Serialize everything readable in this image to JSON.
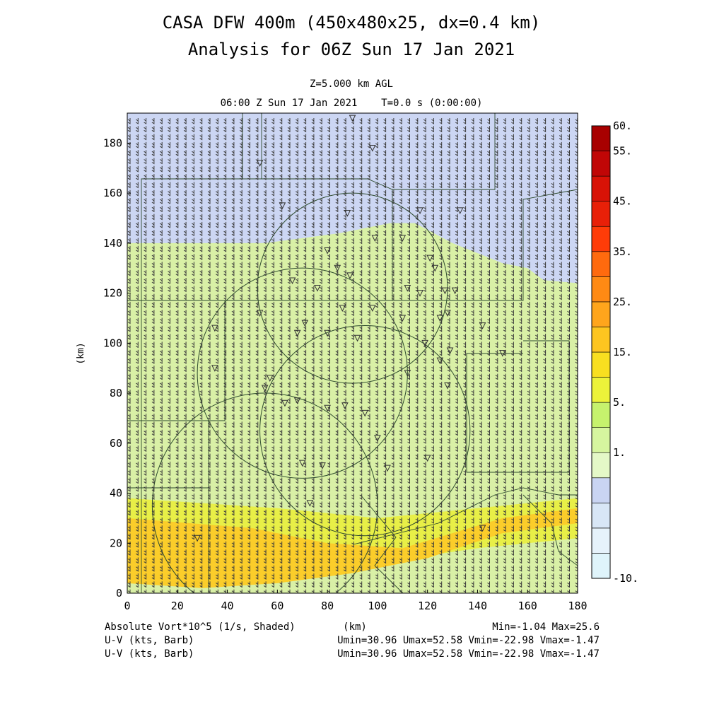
{
  "title_line1": "CASA DFW 400m (450x480x25, dx=0.4 km)",
  "title_line2": "Analysis for 06Z Sun 17 Jan 2021",
  "level_label": "Z=5.000 km AGL",
  "time_label": "06:00 Z Sun 17 Jan 2021    T=0.0 s (0:00:00)",
  "footer": {
    "field1": "Absolute Vort*10^5 (1/s, Shaded)",
    "field2": "U-V (kts, Barb)",
    "field3": "U-V (kts, Barb)",
    "xunit": "(km)",
    "minmax": "Min=-1.04 Max=25.6",
    "uv1": "Umin=30.96 Umax=52.58 Vmin=-22.98 Vmax=-1.47",
    "uv2": "Umin=30.96 Umax=52.58 Vmin=-22.98 Vmax=-1.47"
  },
  "chart_data": {
    "type": "heatmap",
    "xlabel": "(km)",
    "ylabel": "(km)",
    "xlim": [
      0,
      180
    ],
    "ylim": [
      0,
      192
    ],
    "x_ticks": [
      "0",
      "20",
      "40",
      "60",
      "80",
      "100",
      "120",
      "140",
      "160",
      "180"
    ],
    "y_ticks": [
      "0",
      "20",
      "40",
      "60",
      "80",
      "100",
      "120",
      "140",
      "160",
      "180"
    ],
    "field_range": {
      "min": -1.04,
      "max": 25.6
    },
    "colorbar": {
      "labels": [
        {
          "text": "60.",
          "at": 60
        },
        {
          "text": "55.",
          "at": 55
        },
        {
          "text": "45.",
          "at": 45
        },
        {
          "text": "35.",
          "at": 35
        },
        {
          "text": "25.",
          "at": 25
        },
        {
          "text": "15.",
          "at": 15
        },
        {
          "text": "5.",
          "at": 5
        },
        {
          "text": "1.",
          "at": 1
        },
        {
          "text": "-10.",
          "at": -10
        }
      ],
      "colors": [
        "#dff4fb",
        "#e6f2fb",
        "#d8e6f6",
        "#c9d4f2",
        "#e4f8c7",
        "#d6f59f",
        "#c6f26d",
        "#ecf23a",
        "#f8df20",
        "#fdc520",
        "#ffa51c",
        "#ff8a14",
        "#ff6a0e",
        "#ff3c08",
        "#e82008",
        "#d81206",
        "#c00606",
        "#a80000"
      ]
    },
    "shaded_regions": [
      {
        "name": "vorticity ~1 (north band)",
        "value": 1.5,
        "color": "#ccd6f3",
        "polygon": [
          [
            0,
            192
          ],
          [
            180,
            192
          ],
          [
            180,
            124
          ],
          [
            168,
            124
          ],
          [
            160,
            130
          ],
          [
            150,
            132
          ],
          [
            140,
            136
          ],
          [
            130,
            140
          ],
          [
            115,
            148
          ],
          [
            105,
            148
          ],
          [
            95,
            146
          ],
          [
            85,
            144
          ],
          [
            70,
            142
          ],
          [
            55,
            140
          ],
          [
            40,
            140
          ],
          [
            25,
            140
          ],
          [
            10,
            140
          ],
          [
            0,
            140
          ]
        ]
      },
      {
        "name": "vorticity 5-10 band",
        "value": 8,
        "color": "#d9f0a6",
        "polygon": [
          [
            0,
            140
          ],
          [
            180,
            124
          ],
          [
            180,
            60
          ],
          [
            0,
            60
          ]
        ]
      },
      {
        "name": "vorticity 15-20 band",
        "value": 17,
        "color": "#e8ef47",
        "polygon": [
          [
            0,
            38
          ],
          [
            60,
            34
          ],
          [
            100,
            30
          ],
          [
            140,
            34
          ],
          [
            180,
            38
          ],
          [
            180,
            22
          ],
          [
            140,
            18
          ],
          [
            100,
            12
          ],
          [
            60,
            10
          ],
          [
            0,
            14
          ]
        ]
      },
      {
        "name": "vorticity 20-25 band",
        "value": 22,
        "color": "#fbcd2a",
        "polygon": [
          [
            0,
            30
          ],
          [
            50,
            26
          ],
          [
            80,
            20
          ],
          [
            110,
            18
          ],
          [
            130,
            24
          ],
          [
            150,
            30
          ],
          [
            180,
            34
          ],
          [
            180,
            28
          ],
          [
            150,
            24
          ],
          [
            120,
            14
          ],
          [
            90,
            8
          ],
          [
            60,
            4
          ],
          [
            30,
            2
          ],
          [
            0,
            4
          ]
        ]
      }
    ],
    "range_rings": [
      {
        "center": [
          90,
          122
        ],
        "radius": 38
      },
      {
        "center": [
          70,
          88
        ],
        "radius": 42
      },
      {
        "center": [
          95,
          65
        ],
        "radius": 42
      },
      {
        "center": [
          55,
          35
        ],
        "radius": 45
      }
    ],
    "station_markers": [
      [
        90,
        190
      ],
      [
        98,
        178
      ],
      [
        53,
        172
      ],
      [
        62,
        155
      ],
      [
        88,
        152
      ],
      [
        117,
        153
      ],
      [
        133,
        153
      ],
      [
        110,
        142
      ],
      [
        121,
        134
      ],
      [
        99,
        142
      ],
      [
        80,
        137
      ],
      [
        84,
        130
      ],
      [
        123,
        130
      ],
      [
        112,
        122
      ],
      [
        117,
        120
      ],
      [
        127,
        121
      ],
      [
        131,
        121
      ],
      [
        89,
        127
      ],
      [
        76,
        122
      ],
      [
        66,
        125
      ],
      [
        86,
        114
      ],
      [
        98,
        114
      ],
      [
        110,
        110
      ],
      [
        125,
        110
      ],
      [
        128,
        112
      ],
      [
        53,
        112
      ],
      [
        71,
        108
      ],
      [
        35,
        106
      ],
      [
        68,
        104
      ],
      [
        80,
        104
      ],
      [
        92,
        102
      ],
      [
        119,
        100
      ],
      [
        129,
        97
      ],
      [
        125,
        93
      ],
      [
        112,
        88
      ],
      [
        128,
        83
      ],
      [
        35,
        90
      ],
      [
        57,
        86
      ],
      [
        55,
        82
      ],
      [
        63,
        76
      ],
      [
        68,
        77
      ],
      [
        80,
        74
      ],
      [
        87,
        75
      ],
      [
        95,
        72
      ],
      [
        104,
        50
      ],
      [
        120,
        54
      ],
      [
        70,
        52
      ],
      [
        78,
        51
      ],
      [
        73,
        36
      ],
      [
        150,
        96
      ],
      [
        142,
        107
      ],
      [
        100,
        62
      ],
      [
        142,
        26
      ],
      [
        28,
        22
      ]
    ],
    "wind_stats": {
      "Umin": 30.96,
      "Umax": 52.58,
      "Vmin": -22.98,
      "Vmax": -1.47
    }
  }
}
